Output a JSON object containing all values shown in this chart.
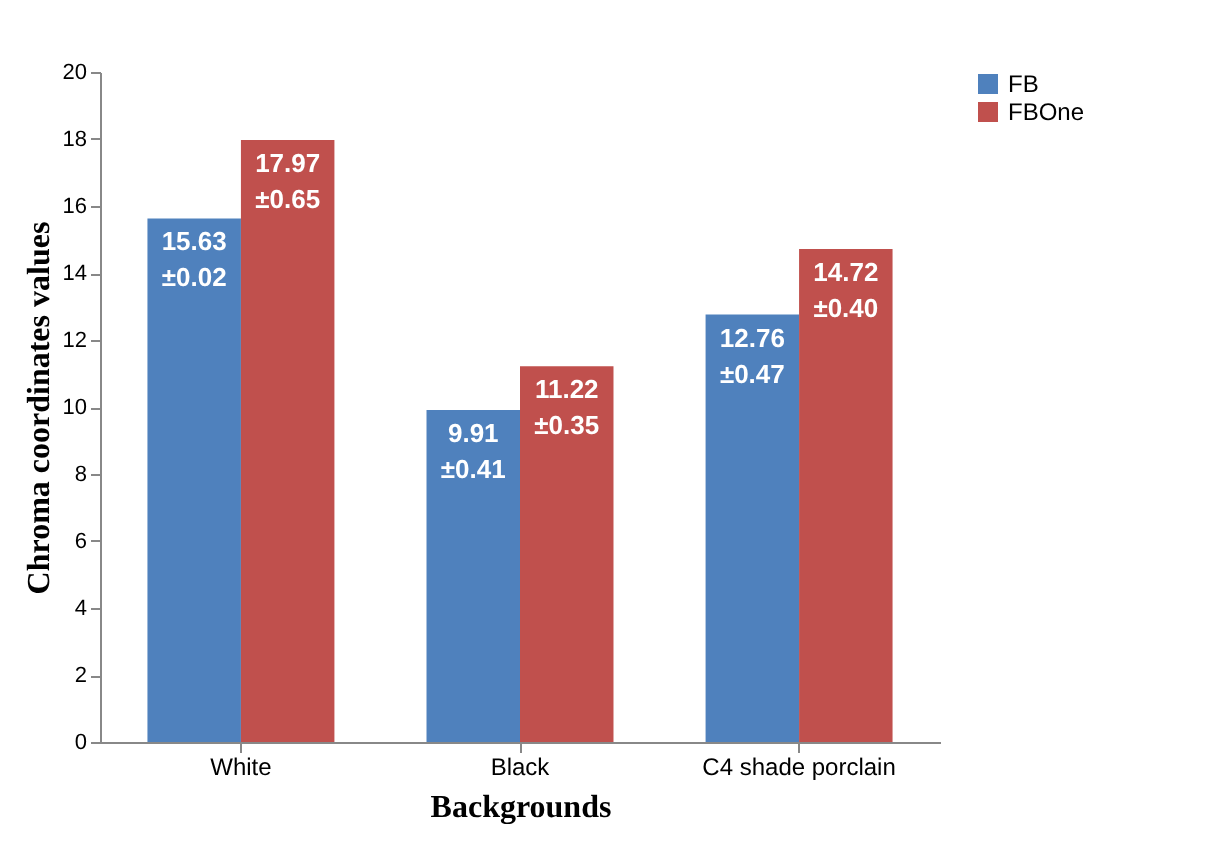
{
  "chart_data": {
    "type": "bar",
    "xlabel": "Backgrounds",
    "ylabel": "Chroma coordinates values",
    "categories": [
      "White",
      "Black",
      "C4 shade porclain"
    ],
    "series": [
      {
        "name": "FB",
        "color": "#4f81bd",
        "values": [
          15.63,
          9.91,
          12.76
        ],
        "value_labels": [
          "15.63\n±0.02",
          "9.91\n±0.41",
          "12.76\n±0.47"
        ]
      },
      {
        "name": "FBOne",
        "color": "#c0504d",
        "values": [
          17.97,
          11.22,
          14.72
        ],
        "value_labels": [
          "17.97\n±0.65",
          "11.22\n±0.35",
          "14.72\n±0.40"
        ]
      }
    ],
    "ylim": [
      0,
      20
    ],
    "yticks": [
      0,
      2,
      4,
      6,
      8,
      10,
      12,
      14,
      16,
      18,
      20
    ],
    "grid": false,
    "legend": "right"
  }
}
